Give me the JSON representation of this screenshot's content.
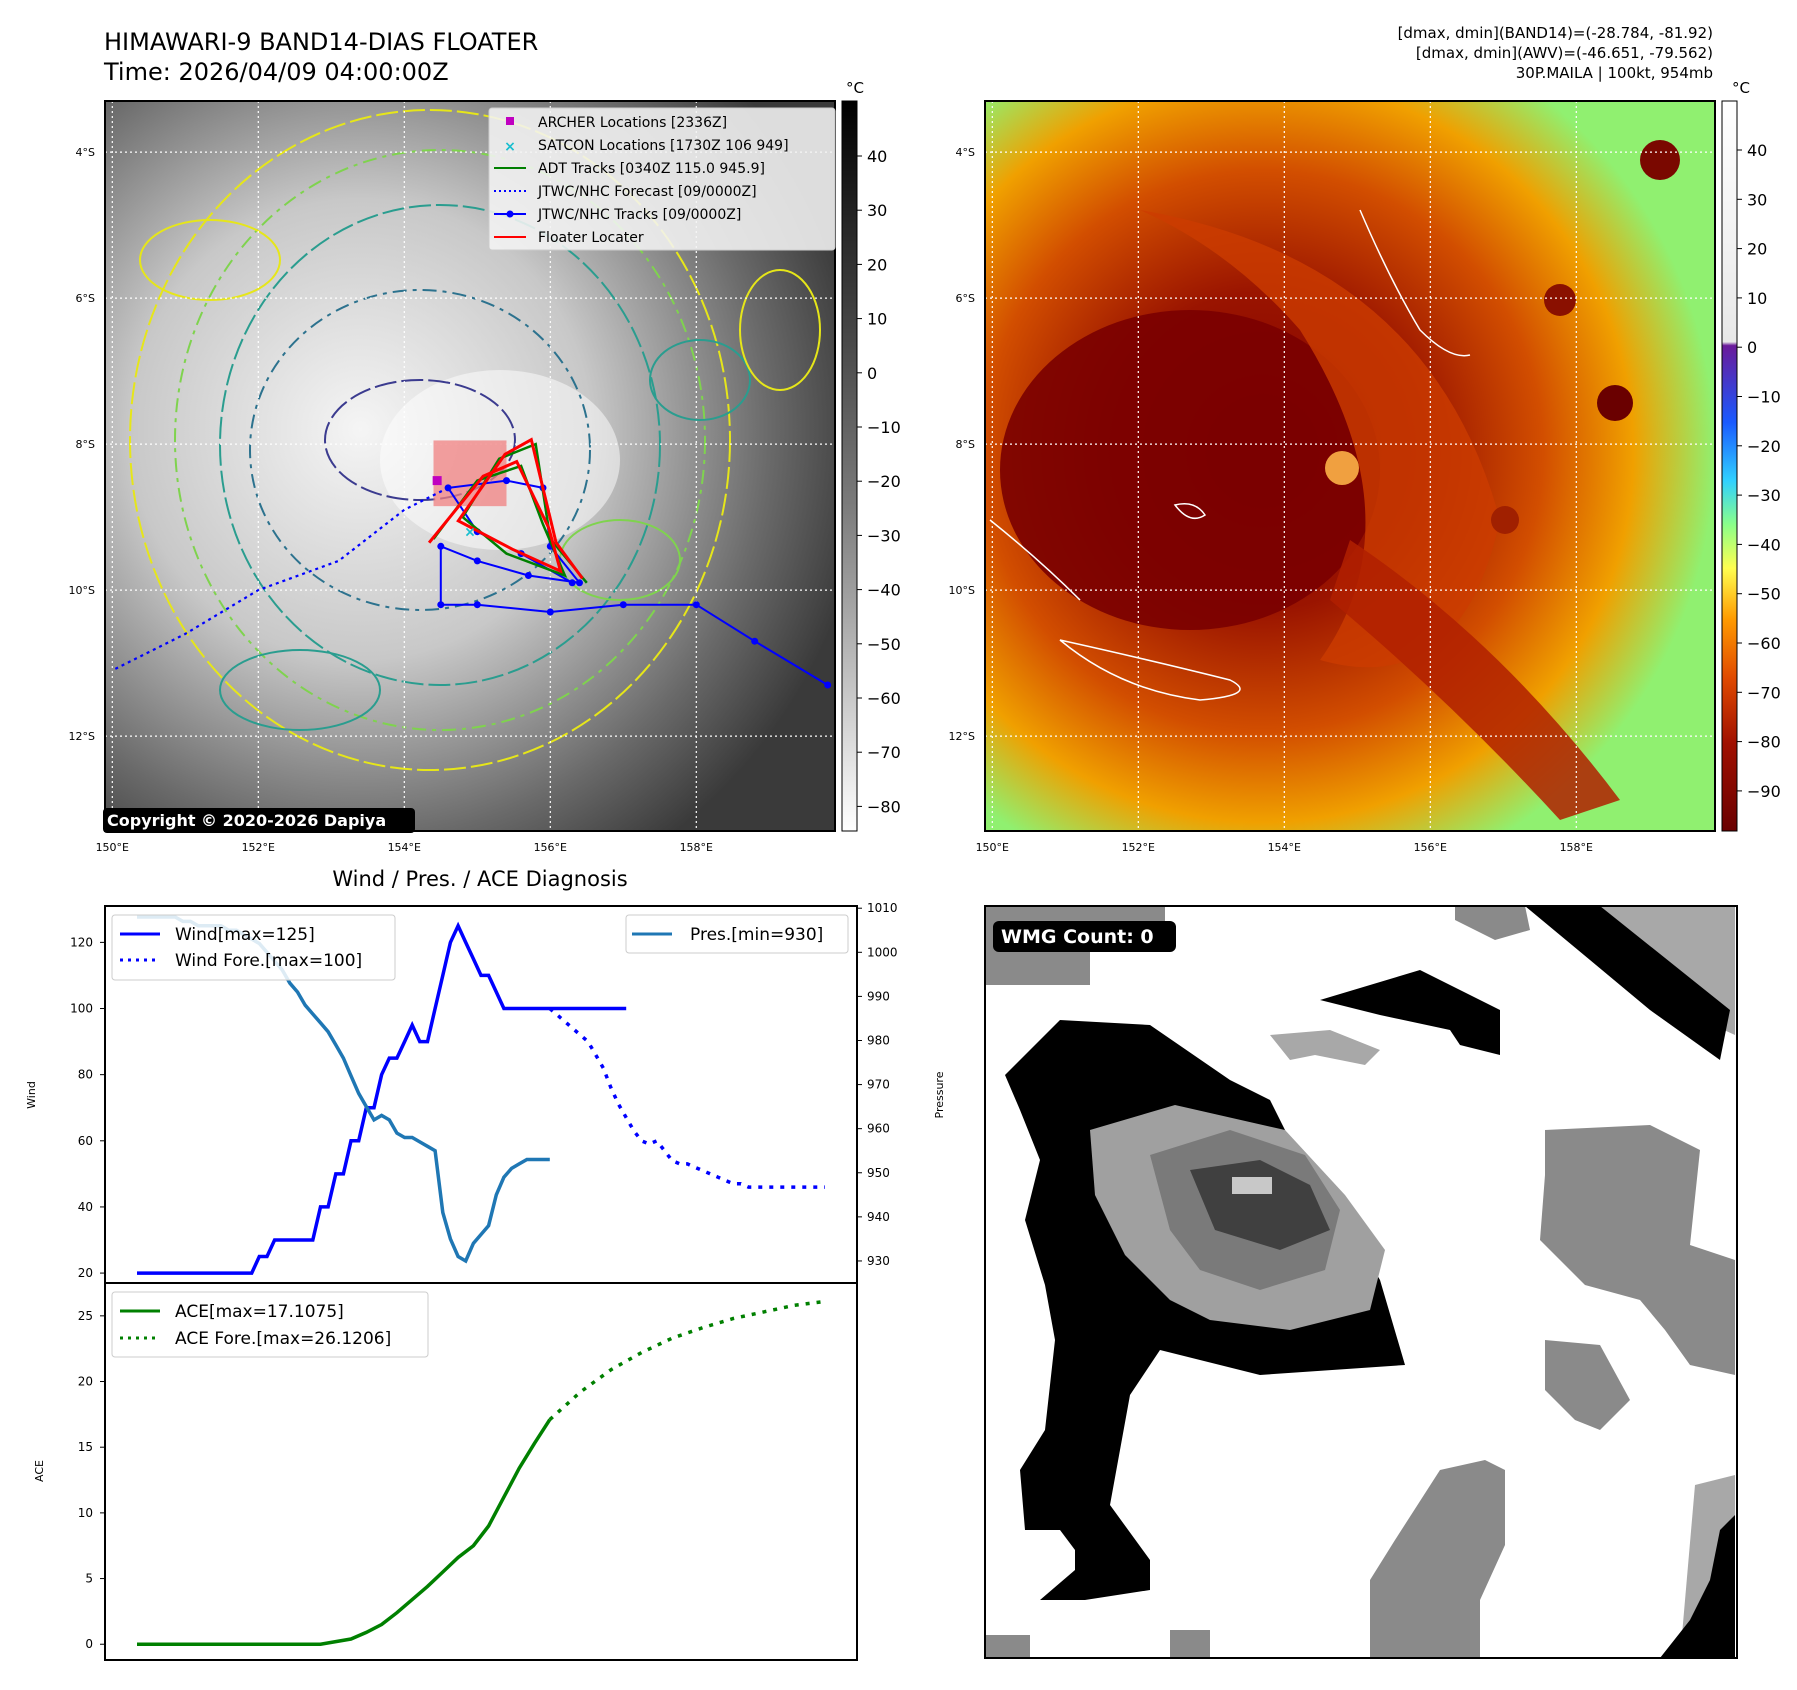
{
  "header": {
    "title_line1": "HIMAWARI-9 BAND14-DIAS FLOATER",
    "title_line2": "Time: 2026/04/09 04:00:00Z",
    "stats_line1": "[dmax, dmin](BAND14)=(-28.784, -81.92)",
    "stats_line2": "[dmax, dmin](AWV)=(-46.651, -79.562)",
    "stats_line3": "30P.MAILA | 100kt, 954mb"
  },
  "colors": {
    "wind": "#0000ff",
    "pres": "#1f77b4",
    "ace": "#008000",
    "archer": "#c000c0",
    "satcon": "#17becf",
    "adt": "#008000",
    "jtwc": "#0000ff",
    "floater": "#ff0000"
  },
  "map_panel": {
    "lat_ticks": [
      "4°S",
      "6°S",
      "8°S",
      "10°S",
      "12°S"
    ],
    "lon_ticks": [
      "150°E",
      "152°E",
      "154°E",
      "156°E",
      "158°E"
    ],
    "colorbar_unit": "°C",
    "copyright": "Copyright © 2020-2026 Dapiya",
    "legend": [
      {
        "label": "ARCHER Locations [2336Z]",
        "icon": "square-marker-icon"
      },
      {
        "label": "SATCON Locations [1730Z 106 949]",
        "icon": "x-marker-icon"
      },
      {
        "label": "ADT Tracks [0340Z 115.0 945.9]",
        "icon": "solid-line-icon"
      },
      {
        "label": "JTWC/NHC Forecast [09/0000Z]",
        "icon": "dotted-line-icon"
      },
      {
        "label": "JTWC/NHC Tracks [09/0000Z]",
        "icon": "dot-line-icon"
      },
      {
        "label": "Floater Locater",
        "icon": "solid-line-icon"
      }
    ],
    "jtwc_track": [
      [
        159.8,
        -11.3
      ],
      [
        158.8,
        -10.7
      ],
      [
        158,
        -10.2
      ],
      [
        157,
        -10.2
      ],
      [
        156,
        -10.3
      ],
      [
        155,
        -10.2
      ],
      [
        154.5,
        -10.2
      ],
      [
        154.5,
        -9.4
      ],
      [
        155,
        -9.6
      ],
      [
        155.7,
        -9.8
      ],
      [
        156.4,
        -9.9
      ],
      [
        156,
        -9.4
      ],
      [
        155.9,
        -8.6
      ],
      [
        155.4,
        -8.5
      ],
      [
        154.6,
        -8.6
      ],
      [
        155,
        -9.2
      ],
      [
        155.6,
        -9.5
      ],
      [
        156.3,
        -9.9
      ]
    ],
    "jtwc_forecast": [
      [
        154.6,
        -8.6
      ],
      [
        154.0,
        -8.9
      ],
      [
        153.1,
        -9.6
      ],
      [
        152.0,
        -10.0
      ],
      [
        151.0,
        -10.6
      ],
      [
        150.0,
        -11.1
      ]
    ],
    "archer_location": [
      154.45,
      -8.5
    ],
    "satcon_location": [
      154.9,
      -9.2
    ],
    "floater_box": {
      "lon": [
        154.4,
        155.4
      ],
      "lat": [
        -7.95,
        -8.85
      ]
    }
  },
  "ir_panel": {
    "lat_ticks": [
      "4°S",
      "6°S",
      "8°S",
      "10°S",
      "12°S"
    ],
    "lon_ticks": [
      "150°E",
      "152°E",
      "154°E",
      "156°E",
      "158°E"
    ],
    "colorbar_unit": "°C",
    "eye_center": [
      154.6,
      -8.5
    ]
  },
  "colorbar_left": {
    "ticks": [
      "40",
      "30",
      "20",
      "10",
      "0",
      "−10",
      "−20",
      "−30",
      "−40",
      "−50",
      "−60",
      "−70",
      "−80"
    ]
  },
  "colorbar_right": {
    "ticks": [
      "40",
      "30",
      "20",
      "10",
      "0",
      "−10",
      "−20",
      "−30",
      "−40",
      "−50",
      "−60",
      "−70",
      "−80",
      "−90"
    ]
  },
  "wmg_panel": {
    "label": "WMG Count: 0"
  },
  "chart_data": [
    {
      "type": "line",
      "title": "Wind / Pres. / ACE Diagnosis",
      "xlabel": "",
      "ylabel": "Wind",
      "ylabel_right": "Pressure",
      "ylim": [
        17,
        131
      ],
      "ylim_right": [
        925,
        1010.5
      ],
      "yticks": [
        20,
        40,
        60,
        80,
        100,
        120
      ],
      "yticks_right": [
        930,
        940,
        950,
        960,
        970,
        980,
        990,
        1000,
        1010
      ],
      "legend_left": [
        "Wind[max=125]",
        "Wind Fore.[max=100]"
      ],
      "legend_right": [
        "Pres.[min=930]"
      ],
      "series": [
        {
          "name": "Wind[max=125]",
          "axis": "left",
          "style": "solid",
          "x": [
            0,
            1,
            2,
            3,
            4,
            5,
            6,
            7,
            8,
            9,
            10,
            11,
            12,
            13,
            14,
            15,
            16,
            17,
            18,
            19,
            20,
            21,
            22,
            23,
            24,
            25,
            26,
            27,
            28,
            29,
            30,
            31,
            32,
            33,
            34,
            35,
            36,
            37,
            38,
            39,
            40,
            41,
            42,
            43,
            44,
            45,
            46,
            47,
            48,
            49,
            50,
            51,
            52,
            53,
            54,
            55,
            56,
            57,
            58,
            59,
            60,
            61,
            62,
            63,
            64
          ],
          "values": [
            20,
            20,
            20,
            20,
            20,
            20,
            20,
            20,
            20,
            20,
            20,
            20,
            20,
            20,
            20,
            20,
            25,
            25,
            30,
            30,
            30,
            30,
            30,
            30,
            40,
            40,
            50,
            50,
            60,
            60,
            70,
            70,
            80,
            85,
            85,
            90,
            95,
            90,
            90,
            100,
            110,
            120,
            125,
            120,
            115,
            110,
            110,
            105,
            100,
            100,
            100,
            100,
            100,
            100,
            100,
            100,
            100,
            100,
            100,
            100,
            100,
            100,
            100,
            100,
            100
          ]
        },
        {
          "name": "Wind Fore.[max=100]",
          "axis": "left",
          "style": "dotted",
          "x": [
            54,
            55,
            56,
            57,
            58,
            59,
            60,
            61,
            62,
            63,
            64,
            65,
            66,
            67,
            68,
            69,
            70,
            71,
            72,
            73,
            74,
            75,
            76,
            77,
            78,
            79,
            80,
            81,
            82,
            83,
            84,
            85,
            86,
            87,
            88,
            89,
            90
          ],
          "values": [
            100,
            98,
            96,
            94,
            92,
            90,
            86,
            82,
            76,
            71,
            67,
            63,
            60,
            59,
            60,
            57,
            54,
            53,
            53,
            52,
            51,
            50,
            49,
            48,
            47,
            47,
            46,
            46,
            46,
            46,
            46,
            46,
            46,
            46,
            46,
            46,
            46
          ]
        },
        {
          "name": "Pres.[min=930]",
          "axis": "right",
          "style": "solid",
          "x": [
            0,
            1,
            2,
            3,
            4,
            5,
            6,
            7,
            8,
            9,
            10,
            11,
            12,
            13,
            14,
            15,
            16,
            17,
            18,
            19,
            20,
            21,
            22,
            23,
            24,
            25,
            26,
            27,
            28,
            29,
            30,
            31,
            32,
            33,
            34,
            35,
            36,
            37,
            38,
            39,
            40,
            41,
            42,
            43,
            44,
            45,
            46,
            47,
            48,
            49,
            50,
            51,
            52,
            53,
            54
          ],
          "values": [
            1008,
            1008,
            1008,
            1008,
            1008,
            1008,
            1007,
            1007,
            1006,
            1006,
            1006,
            1006,
            1005,
            1005,
            1004,
            1003,
            1002,
            1000,
            998,
            996,
            993,
            991,
            988,
            986,
            984,
            982,
            979,
            976,
            972,
            968,
            965,
            962,
            963,
            962,
            959,
            958,
            958,
            957,
            956,
            955,
            941,
            935,
            931,
            930,
            934,
            936,
            938,
            945,
            949,
            951,
            952,
            953,
            953,
            953,
            953
          ]
        }
      ]
    },
    {
      "type": "line",
      "xlabel": "",
      "ylabel": "ACE",
      "ylim": [
        -1.2,
        27.5
      ],
      "yticks": [
        0,
        5,
        10,
        15,
        20,
        25
      ],
      "legend": [
        "ACE[max=17.1075]",
        "ACE Fore.[max=26.1206]"
      ],
      "series": [
        {
          "name": "ACE[max=17.1075]",
          "style": "solid",
          "x": [
            0,
            4,
            8,
            12,
            16,
            20,
            24,
            28,
            30,
            32,
            34,
            36,
            38,
            40,
            42,
            44,
            46,
            48,
            50,
            52,
            54
          ],
          "values": [
            0,
            0,
            0,
            0,
            0,
            0,
            0,
            0.4,
            0.9,
            1.5,
            2.4,
            3.4,
            4.4,
            5.5,
            6.6,
            7.5,
            9.0,
            11.2,
            13.4,
            15.3,
            17.1
          ]
        },
        {
          "name": "ACE Fore.[max=26.1206]",
          "style": "dotted",
          "x": [
            54,
            58,
            62,
            66,
            70,
            74,
            78,
            82,
            86,
            90
          ],
          "values": [
            17.1,
            19.2,
            20.9,
            22.2,
            23.3,
            24.1,
            24.8,
            25.3,
            25.8,
            26.1
          ]
        }
      ]
    }
  ]
}
